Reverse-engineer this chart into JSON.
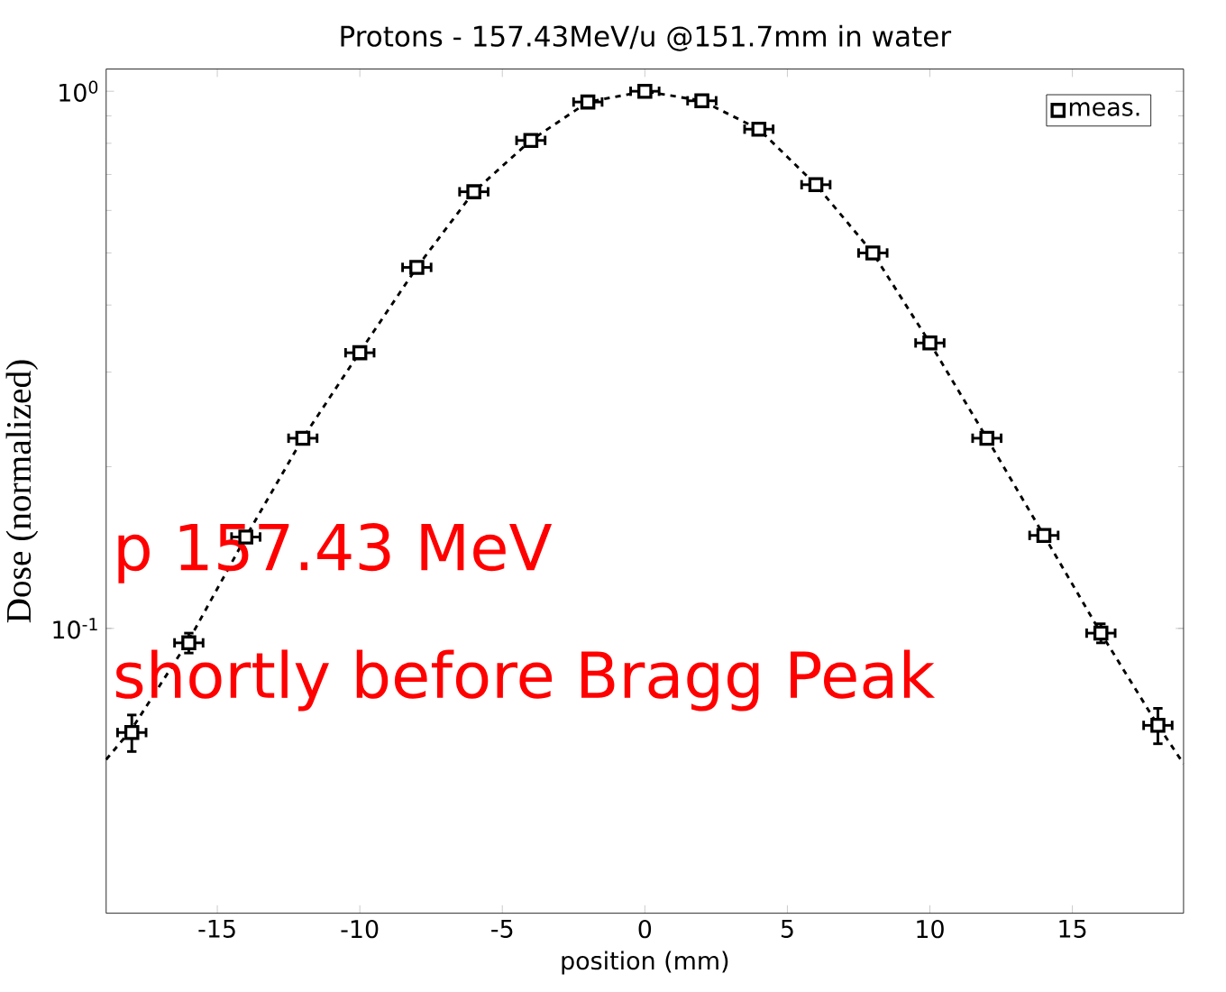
{
  "chart_data": {
    "type": "scatter",
    "title": "Protons - 157.43MeV/u @151.7mm in water",
    "xlabel": "position (mm)",
    "ylabel": "Dose (normalized)",
    "log": "y",
    "grid": false,
    "legend": "top right",
    "xlim": [
      -18.9,
      18.9
    ],
    "ylim": [
      0.0295,
      1.1
    ],
    "xticks": [
      -15,
      -10,
      -5,
      0,
      5,
      10,
      15
    ],
    "yticks": [
      {
        "value": 0.1,
        "label": "10$^{-1}$"
      },
      {
        "value": 1,
        "label": "10$^{0}$"
      }
    ],
    "annotations": [
      "p 157.43 MeV",
      "shortly before Bragg Peak"
    ],
    "series": [
      {
        "type": "line",
        "color": "#000000",
        "line_style": "dashed",
        "marker": "none",
        "x": [
          -18.9,
          -18,
          -16,
          -14,
          -12,
          -10,
          -8,
          -6,
          -4,
          -2,
          0,
          2,
          4,
          6,
          8,
          10,
          12,
          14,
          16,
          18,
          18.9
        ],
        "values": [
          0.057,
          0.065,
          0.095,
          0.148,
          0.226,
          0.327,
          0.47,
          0.65,
          0.81,
          0.955,
          1.0,
          0.96,
          0.85,
          0.67,
          0.5,
          0.34,
          0.226,
          0.149,
          0.098,
          0.066,
          0.056
        ]
      },
      {
        "name": "meas.",
        "color": "#000000",
        "marker": "square",
        "x": [
          -18,
          -16,
          -14,
          -12,
          -10,
          -8,
          -6,
          -4,
          -2,
          0,
          2,
          4,
          6,
          8,
          10,
          12,
          14,
          16,
          18
        ],
        "values": [
          0.064,
          0.094,
          0.148,
          0.226,
          0.326,
          0.47,
          0.65,
          0.81,
          0.955,
          1.0,
          0.96,
          0.85,
          0.67,
          0.5,
          0.34,
          0.226,
          0.149,
          0.098,
          0.066
        ],
        "errors": [
          0.005,
          0.004,
          null,
          null,
          null,
          null,
          null,
          null,
          null,
          null,
          null,
          null,
          null,
          null,
          null,
          null,
          null,
          0.004,
          0.005
        ],
        "xerrors": [
          0.5,
          0.5,
          0.5,
          0.5,
          0.5,
          0.5,
          0.5,
          0.5,
          0.5,
          0.5,
          0.5,
          0.5,
          0.5,
          0.5,
          0.5,
          0.5,
          0.5,
          0.5,
          0.5
        ]
      }
    ]
  }
}
